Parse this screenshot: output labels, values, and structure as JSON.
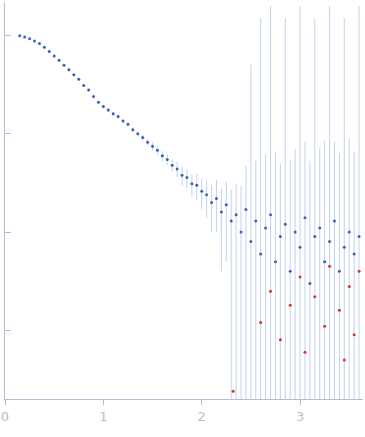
{
  "chart_data": {
    "type": "scatter",
    "log": "y",
    "tick_labels": "x",
    "grid": false,
    "marker": "circle",
    "xlim": [
      0,
      3.64
    ],
    "xticks": [
      0,
      1,
      2,
      3
    ],
    "ylim": [
      0.0002,
      2.2
    ],
    "yticks": [
      0.001,
      0.01,
      0.1,
      1
    ],
    "series": [
      {
        "color": "#3a63b8",
        "x": [
          0.15,
          0.2,
          0.25,
          0.3,
          0.35,
          0.4,
          0.45,
          0.5,
          0.55,
          0.6,
          0.65,
          0.7,
          0.75,
          0.8,
          0.85,
          0.9,
          0.95,
          1.0,
          1.05,
          1.1,
          1.15,
          1.2,
          1.25,
          1.3,
          1.35,
          1.4,
          1.45,
          1.5,
          1.55,
          1.6,
          1.65,
          1.7,
          1.75,
          1.8,
          1.85,
          1.9,
          1.95,
          2.0,
          2.05,
          2.1,
          2.15,
          2.2,
          2.25,
          2.3,
          2.35,
          2.4,
          2.45,
          2.5,
          2.55,
          2.6,
          2.65,
          2.7,
          2.75,
          2.8,
          2.85,
          2.9,
          2.95,
          3.0,
          3.05,
          3.1,
          3.15,
          3.2,
          3.25,
          3.3,
          3.35,
          3.4,
          3.45,
          3.5,
          3.55,
          3.6
        ],
        "values": [
          1.0,
          0.97,
          0.93,
          0.88,
          0.83,
          0.76,
          0.69,
          0.62,
          0.56,
          0.5,
          0.45,
          0.4,
          0.36,
          0.31,
          0.28,
          0.24,
          0.21,
          0.19,
          0.175,
          0.16,
          0.15,
          0.135,
          0.125,
          0.11,
          0.1,
          0.092,
          0.082,
          0.075,
          0.068,
          0.06,
          0.055,
          0.048,
          0.044,
          0.038,
          0.036,
          0.031,
          0.03,
          0.026,
          0.024,
          0.02,
          0.022,
          0.016,
          0.019,
          0.013,
          0.015,
          0.01,
          0.017,
          0.008,
          0.013,
          0.006,
          0.011,
          0.015,
          0.005,
          0.009,
          0.012,
          0.004,
          0.01,
          0.007,
          0.014,
          0.003,
          0.009,
          0.011,
          0.005,
          0.008,
          0.013,
          0.004,
          0.007,
          0.01,
          0.006,
          0.009
        ],
        "error": [
          0.02,
          0.02,
          0.02,
          0.02,
          0.02,
          0.02,
          0.02,
          0.02,
          0.02,
          0.02,
          0.015,
          0.015,
          0.012,
          0.01,
          0.01,
          0.01,
          0.008,
          0.008,
          0.008,
          0.008,
          0.007,
          0.007,
          0.006,
          0.006,
          0.006,
          0.006,
          0.006,
          0.007,
          0.007,
          0.007,
          0.007,
          0.007,
          0.008,
          0.008,
          0.008,
          0.008,
          0.009,
          0.009,
          0.01,
          0.01,
          0.012,
          0.012,
          0.014,
          0.014,
          0.016,
          0.02,
          0.03,
          0.5,
          0.04,
          1.5,
          0.05,
          2,
          0.06,
          0.04,
          1.5,
          0.05,
          0.06,
          2,
          0.07,
          0.05,
          1.5,
          0.06,
          0.08,
          2,
          0.07,
          0.06,
          1.5,
          0.08,
          0.06,
          2
        ]
      },
      {
        "color": "#e0302a",
        "x": [
          2.32,
          2.6,
          2.7,
          2.8,
          2.9,
          3.0,
          3.05,
          3.15,
          3.25,
          3.3,
          3.4,
          3.45,
          3.5,
          3.55,
          3.6
        ],
        "values": [
          0.00024,
          0.0012,
          0.0025,
          0.0008,
          0.0018,
          0.0035,
          0.0006,
          0.0022,
          0.0011,
          0.0045,
          0.0016,
          0.0005,
          0.0028,
          0.0009,
          0.004
        ]
      }
    ]
  }
}
